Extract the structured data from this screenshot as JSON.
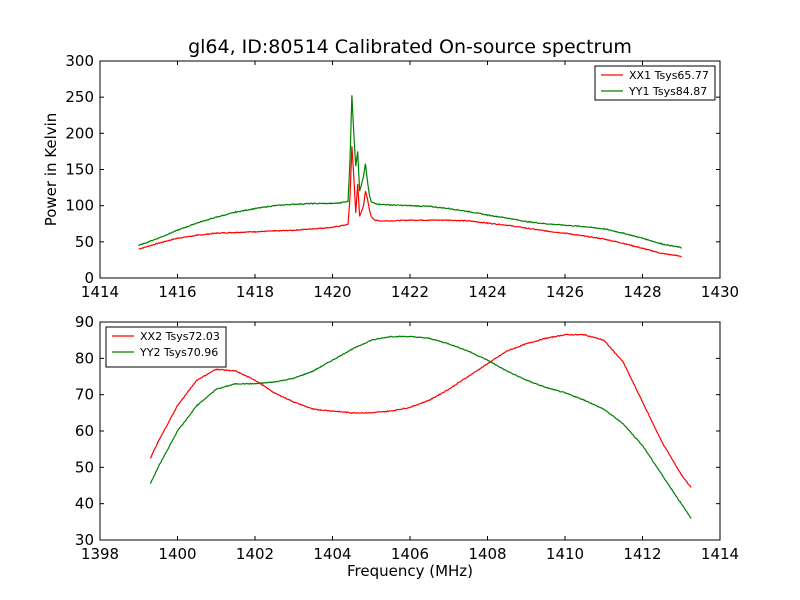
{
  "figure": {
    "title": "gl64, ID:80514 Calibrated On-source spectrum"
  },
  "chart_data": [
    {
      "type": "line",
      "title": "gl64, ID:80514 Calibrated On-source spectrum",
      "xlabel": "",
      "ylabel": "Power in Kelvin",
      "xlim": [
        1414,
        1430
      ],
      "ylim": [
        0,
        300
      ],
      "xticks": [
        1414,
        1416,
        1418,
        1420,
        1422,
        1424,
        1426,
        1428,
        1430
      ],
      "yticks": [
        0,
        50,
        100,
        150,
        200,
        250,
        300
      ],
      "legend_position": "top-right",
      "grid": false,
      "series": [
        {
          "name": "XX1 Tsys65.77",
          "color": "#ff0000",
          "x": [
            1415.0,
            1415.5,
            1416.0,
            1416.5,
            1417.0,
            1417.5,
            1418.0,
            1418.5,
            1419.0,
            1419.5,
            1420.0,
            1420.2,
            1420.4,
            1420.45,
            1420.5,
            1420.55,
            1420.6,
            1420.65,
            1420.7,
            1420.75,
            1420.8,
            1420.85,
            1420.9,
            1420.95,
            1421.0,
            1421.1,
            1421.2,
            1421.5,
            1422.0,
            1422.5,
            1423.0,
            1423.5,
            1424.0,
            1424.5,
            1425.0,
            1425.5,
            1426.0,
            1426.5,
            1427.0,
            1427.5,
            1428.0,
            1428.5,
            1429.0
          ],
          "y": [
            40,
            48,
            55,
            59,
            62,
            63,
            64,
            65,
            66,
            68,
            70,
            72,
            74,
            110,
            182,
            140,
            90,
            130,
            85,
            92,
            100,
            120,
            110,
            95,
            85,
            80,
            79,
            79,
            80,
            80,
            80,
            79,
            76,
            73,
            69,
            65,
            62,
            58,
            54,
            48,
            41,
            34,
            30
          ]
        },
        {
          "name": "YY1 Tsys84.87",
          "color": "#008000",
          "x": [
            1415.0,
            1415.5,
            1416.0,
            1416.5,
            1417.0,
            1417.5,
            1418.0,
            1418.5,
            1419.0,
            1419.5,
            1420.0,
            1420.2,
            1420.4,
            1420.45,
            1420.5,
            1420.55,
            1420.6,
            1420.65,
            1420.7,
            1420.75,
            1420.8,
            1420.85,
            1420.9,
            1420.95,
            1421.0,
            1421.1,
            1421.2,
            1421.5,
            1422.0,
            1422.5,
            1423.0,
            1423.5,
            1424.0,
            1424.5,
            1425.0,
            1425.5,
            1426.0,
            1426.5,
            1427.0,
            1427.5,
            1428.0,
            1428.5,
            1429.0
          ],
          "y": [
            45,
            55,
            66,
            76,
            84,
            91,
            96,
            100,
            102,
            103,
            103,
            104,
            106,
            160,
            252,
            200,
            155,
            175,
            120,
            130,
            140,
            158,
            135,
            115,
            105,
            103,
            102,
            101,
            100,
            99,
            96,
            92,
            87,
            83,
            78,
            75,
            73,
            71,
            68,
            62,
            55,
            47,
            42
          ]
        }
      ]
    },
    {
      "type": "line",
      "title": "",
      "xlabel": "Frequency (MHz)",
      "ylabel": "",
      "xlim": [
        1398,
        1414
      ],
      "ylim": [
        30,
        90
      ],
      "xticks": [
        1398,
        1400,
        1402,
        1404,
        1406,
        1408,
        1410,
        1412,
        1414
      ],
      "yticks": [
        30,
        40,
        50,
        60,
        70,
        80,
        90
      ],
      "legend_position": "top-left",
      "grid": false,
      "series": [
        {
          "name": "XX2 Tsys72.03",
          "color": "#ff0000",
          "x": [
            1399.3,
            1399.5,
            1400.0,
            1400.5,
            1401.0,
            1401.5,
            1402.0,
            1402.5,
            1403.0,
            1403.5,
            1404.0,
            1404.5,
            1405.0,
            1405.5,
            1406.0,
            1406.5,
            1407.0,
            1407.5,
            1408.0,
            1408.5,
            1409.0,
            1409.5,
            1410.0,
            1410.5,
            1411.0,
            1411.5,
            1412.0,
            1412.5,
            1413.0,
            1413.25
          ],
          "y": [
            52.5,
            57,
            67,
            74,
            77,
            76.5,
            74,
            70.5,
            68,
            66,
            65.5,
            65,
            65,
            65.5,
            66.5,
            68.5,
            71.5,
            75,
            78.5,
            82,
            84,
            85.5,
            86.5,
            86.5,
            85,
            79,
            68,
            57,
            48,
            44.5
          ]
        },
        {
          "name": "YY2 Tsys70.96",
          "color": "#008000",
          "x": [
            1399.3,
            1399.5,
            1400.0,
            1400.5,
            1401.0,
            1401.5,
            1402.0,
            1402.5,
            1403.0,
            1403.5,
            1404.0,
            1404.5,
            1405.0,
            1405.5,
            1406.0,
            1406.5,
            1407.0,
            1407.5,
            1408.0,
            1408.5,
            1409.0,
            1409.5,
            1410.0,
            1410.5,
            1411.0,
            1411.5,
            1412.0,
            1412.5,
            1413.0,
            1413.25
          ],
          "y": [
            45.5,
            50,
            60,
            67,
            71.5,
            73,
            73,
            73.5,
            74.5,
            76.5,
            79.5,
            82.5,
            85,
            86,
            86,
            85.5,
            84,
            82,
            79.5,
            76.5,
            74,
            72,
            70.5,
            68.5,
            66,
            62,
            56,
            48,
            40,
            36
          ]
        }
      ]
    }
  ]
}
